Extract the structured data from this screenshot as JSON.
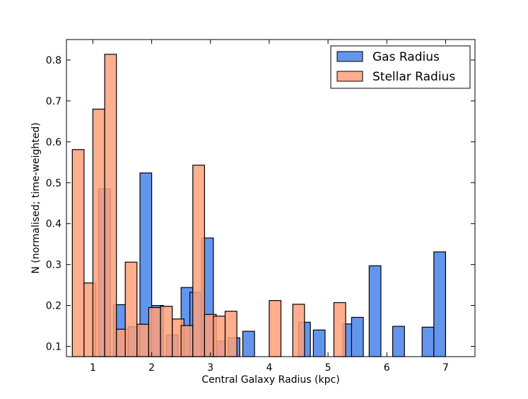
{
  "chart_data": {
    "type": "bar",
    "title": "",
    "xlabel": "Central Galaxy Radius (kpc)",
    "ylabel": "N (normalised; time-weighted)",
    "xlim": [
      0.55,
      7.5
    ],
    "ylim": [
      0.075,
      0.85
    ],
    "xticks": [
      1,
      2,
      3,
      4,
      5,
      6,
      7
    ],
    "yticks": [
      0.1,
      0.2,
      0.3,
      0.4,
      0.5,
      0.6,
      0.7,
      0.8
    ],
    "grid": false,
    "legend_position": "top-right",
    "series": [
      {
        "name": "Gas Radius",
        "color": "#6495ED",
        "alpha": 1.0,
        "bar_width": 0.2,
        "bars": [
          {
            "x": 1.2,
            "value": 0.485
          },
          {
            "x": 1.45,
            "value": 0.202
          },
          {
            "x": 1.7,
            "value": 0.148
          },
          {
            "x": 1.9,
            "value": 0.524
          },
          {
            "x": 2.1,
            "value": 0.2
          },
          {
            "x": 2.35,
            "value": 0.128
          },
          {
            "x": 2.6,
            "value": 0.244
          },
          {
            "x": 2.75,
            "value": 0.232
          },
          {
            "x": 2.95,
            "value": 0.365
          },
          {
            "x": 3.15,
            "value": 0.113
          },
          {
            "x": 3.4,
            "value": 0.121
          },
          {
            "x": 3.65,
            "value": 0.137
          },
          {
            "x": 4.6,
            "value": 0.159
          },
          {
            "x": 4.85,
            "value": 0.14
          },
          {
            "x": 5.35,
            "value": 0.155
          },
          {
            "x": 5.5,
            "value": 0.171
          },
          {
            "x": 5.8,
            "value": 0.297
          },
          {
            "x": 6.2,
            "value": 0.149
          },
          {
            "x": 6.7,
            "value": 0.147
          },
          {
            "x": 6.9,
            "value": 0.331
          }
        ]
      },
      {
        "name": "Stellar Radius",
        "color": "#FFA07A",
        "alpha": 0.85,
        "bar_width": 0.2,
        "bars": [
          {
            "x": 0.75,
            "value": 0.581
          },
          {
            "x": 0.95,
            "value": 0.255
          },
          {
            "x": 1.1,
            "value": 0.68
          },
          {
            "x": 1.3,
            "value": 0.814
          },
          {
            "x": 1.5,
            "value": 0.142
          },
          {
            "x": 1.65,
            "value": 0.306
          },
          {
            "x": 1.85,
            "value": 0.154
          },
          {
            "x": 2.05,
            "value": 0.195
          },
          {
            "x": 2.25,
            "value": 0.198
          },
          {
            "x": 2.45,
            "value": 0.167
          },
          {
            "x": 2.6,
            "value": 0.151
          },
          {
            "x": 2.8,
            "value": 0.543
          },
          {
            "x": 3.0,
            "value": 0.178
          },
          {
            "x": 3.15,
            "value": 0.174
          },
          {
            "x": 3.35,
            "value": 0.186
          },
          {
            "x": 4.1,
            "value": 0.212
          },
          {
            "x": 4.5,
            "value": 0.203
          },
          {
            "x": 5.2,
            "value": 0.207
          }
        ]
      }
    ]
  }
}
